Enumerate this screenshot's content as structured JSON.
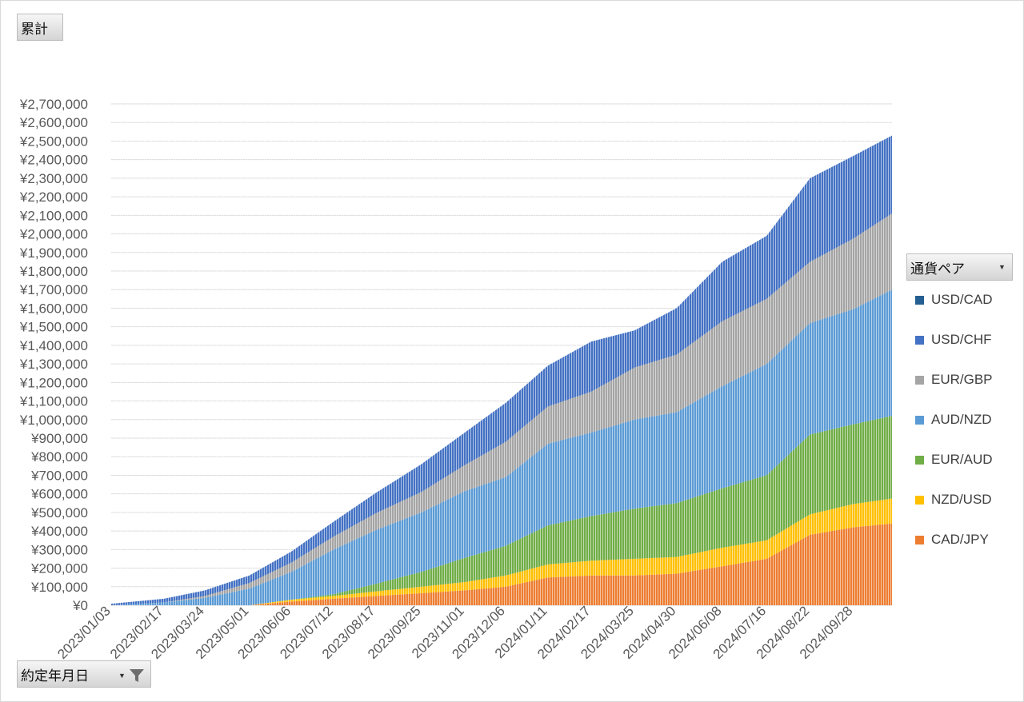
{
  "value_field": {
    "label": "累計"
  },
  "date_field": {
    "label": "約定年月日"
  },
  "series_field": {
    "label": "通貨ペア"
  },
  "chart_data": {
    "type": "area",
    "stacked": true,
    "grid": true,
    "legend_position": "right",
    "ylim": [
      0,
      2700000
    ],
    "yticks": [
      "¥0",
      "¥100,000",
      "¥200,000",
      "¥300,000",
      "¥400,000",
      "¥500,000",
      "¥600,000",
      "¥700,000",
      "¥800,000",
      "¥900,000",
      "¥1,000,000",
      "¥1,100,000",
      "¥1,200,000",
      "¥1,300,000",
      "¥1,400,000",
      "¥1,500,000",
      "¥1,600,000",
      "¥1,700,000",
      "¥1,800,000",
      "¥1,900,000",
      "¥2,000,000",
      "¥2,100,000",
      "¥2,200,000",
      "¥2,300,000",
      "¥2,400,000",
      "¥2,500,000",
      "¥2,600,000",
      "¥2,700,000"
    ],
    "x": [
      "2023/01/03",
      "2023/02/17",
      "2023/03/24",
      "2023/05/01",
      "2023/06/06",
      "2023/07/12",
      "2023/08/17",
      "2023/09/25",
      "2023/11/01",
      "2023/12/06",
      "2024/01/11",
      "2024/02/17",
      "2024/03/25",
      "2024/04/30",
      "2024/06/08",
      "2024/07/16",
      "2024/08/22",
      "2024/09/28",
      "2024/10/31"
    ],
    "xtick_labels": [
      "2023/01/03",
      "2023/02/17",
      "2023/03/24",
      "2023/05/01",
      "2023/06/06",
      "2023/07/12",
      "2023/08/17",
      "2023/09/25",
      "2023/11/01",
      "2023/12/06",
      "2024/01/11",
      "2024/02/17",
      "2024/03/25",
      "2024/04/30",
      "2024/06/08",
      "2024/07/16",
      "2024/08/22",
      "2024/09/28"
    ],
    "series": [
      {
        "name": "CAD/JPY",
        "color": "#ED7D31",
        "values": [
          0,
          0,
          0,
          0,
          20000,
          35000,
          50000,
          65000,
          80000,
          100000,
          150000,
          160000,
          160000,
          170000,
          210000,
          250000,
          380000,
          420000,
          440000
        ]
      },
      {
        "name": "NZD/USD",
        "color": "#FFC000",
        "values": [
          0,
          0,
          0,
          0,
          10000,
          15000,
          25000,
          35000,
          45000,
          60000,
          70000,
          80000,
          90000,
          90000,
          100000,
          100000,
          110000,
          125000,
          135000
        ]
      },
      {
        "name": "EUR/AUD",
        "color": "#70AD47",
        "values": [
          0,
          0,
          0,
          0,
          0,
          10000,
          40000,
          80000,
          130000,
          160000,
          210000,
          240000,
          270000,
          290000,
          320000,
          350000,
          430000,
          430000,
          445000
        ]
      },
      {
        "name": "AUD/NZD",
        "color": "#5B9BD5",
        "values": [
          0,
          15000,
          40000,
          90000,
          150000,
          240000,
          290000,
          320000,
          360000,
          370000,
          440000,
          450000,
          480000,
          490000,
          550000,
          600000,
          600000,
          620000,
          680000
        ]
      },
      {
        "name": "EUR/GBP",
        "color": "#A5A5A5",
        "values": [
          0,
          0,
          10000,
          30000,
          50000,
          70000,
          90000,
          110000,
          140000,
          190000,
          200000,
          220000,
          280000,
          310000,
          350000,
          350000,
          330000,
          380000,
          410000
        ]
      },
      {
        "name": "USD/CHF",
        "color": "#4472C4",
        "values": [
          8000,
          20000,
          30000,
          40000,
          60000,
          80000,
          110000,
          150000,
          175000,
          210000,
          220000,
          270000,
          200000,
          250000,
          320000,
          340000,
          450000,
          445000,
          420000
        ]
      },
      {
        "name": "USD/CAD",
        "color": "#255E91",
        "values": [
          0,
          0,
          0,
          0,
          0,
          0,
          0,
          0,
          0,
          0,
          0,
          0,
          0,
          0,
          0,
          0,
          0,
          0,
          0
        ]
      }
    ]
  }
}
